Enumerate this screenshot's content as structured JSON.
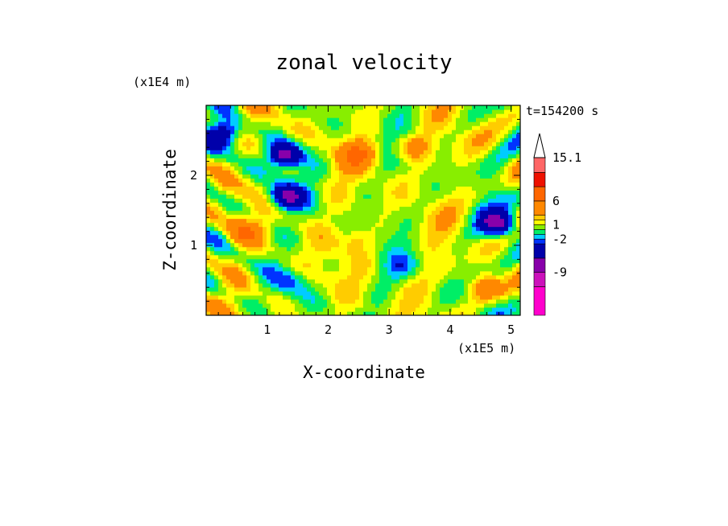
{
  "chart_data": {
    "type": "heatmap",
    "title": "zonal velocity",
    "xlabel": "X-coordinate",
    "ylabel": "Z-coordinate",
    "x_unit": "(x1E5 m)",
    "y_unit": "(x1E4 m)",
    "time_label": "t=154200 s",
    "xlim": [
      0,
      5.15
    ],
    "ylim": [
      0,
      3.0
    ],
    "x_ticks": [
      "1",
      "2",
      "3",
      "4",
      "5"
    ],
    "y_ticks": [
      "1",
      "2"
    ],
    "colorbar": {
      "labels": [
        "15.1",
        "6",
        "1",
        "-2",
        "-9"
      ],
      "levels": [
        -15,
        -12,
        -9,
        -6,
        -3,
        -2,
        -1,
        0,
        1,
        2,
        3,
        6,
        9,
        12,
        15.1
      ],
      "colors": [
        "#ff00cc",
        "#cc11bb",
        "#8800aa",
        "#0000aa",
        "#0033ff",
        "#00ccff",
        "#00ee66",
        "#88ee00",
        "#ffff00",
        "#ffcc00",
        "#ff8800",
        "#ff6600",
        "#ee1100",
        "#ff6666",
        "#ffbbbb"
      ]
    },
    "field_features": [
      {
        "x": 2.5,
        "z": 2.3,
        "value": 5
      },
      {
        "x": 3.4,
        "z": 2.4,
        "value": 4
      },
      {
        "x": 1.3,
        "z": 2.3,
        "value": -8
      },
      {
        "x": 1.3,
        "z": 1.7,
        "value": -7
      },
      {
        "x": 4.8,
        "z": 1.3,
        "value": -8
      },
      {
        "x": 0.3,
        "z": 2.6,
        "value": -6
      },
      {
        "x": 0.6,
        "z": 1.2,
        "value": 4
      },
      {
        "x": 2.5,
        "z": 1.1,
        "value": 2
      },
      {
        "x": 3.2,
        "z": 0.7,
        "value": -2
      },
      {
        "x": 1.4,
        "z": 0.5,
        "value": -2
      },
      {
        "x": 3.9,
        "z": 0.6,
        "value": 0.5
      },
      {
        "x": 4.6,
        "z": 0.4,
        "value": 4
      }
    ]
  }
}
